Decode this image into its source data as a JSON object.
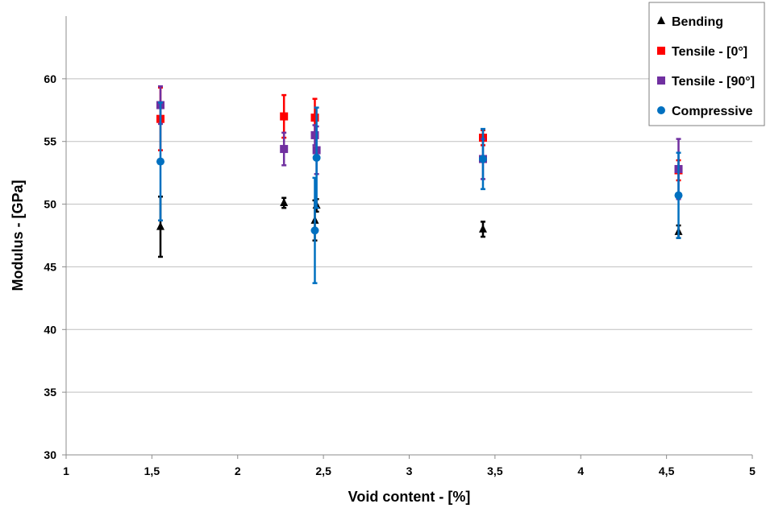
{
  "chart_data": {
    "type": "scatter",
    "title": "",
    "xlabel": "Void content - [%]",
    "ylabel": "Modulus - [GPa]",
    "xlim": [
      1,
      5
    ],
    "ylim": [
      30,
      65
    ],
    "x_ticks": [
      1,
      1.5,
      2,
      2.5,
      3,
      3.5,
      4,
      4.5,
      5
    ],
    "x_tick_labels": [
      "1",
      "1,5",
      "2",
      "2,5",
      "3",
      "3,5",
      "4",
      "4,5",
      "5"
    ],
    "y_ticks": [
      30,
      35,
      40,
      45,
      50,
      55,
      60
    ],
    "y_tick_labels": [
      "30",
      "35",
      "40",
      "45",
      "50",
      "55",
      "60"
    ],
    "grid": "horizontal",
    "legend_position": "top-right",
    "series": [
      {
        "name": "Bending",
        "marker": "triangle",
        "color": "#000000",
        "points": [
          {
            "x": 1.55,
            "y": 48.2,
            "err": 2.4
          },
          {
            "x": 2.27,
            "y": 50.1,
            "err": 0.4
          },
          {
            "x": 2.45,
            "y": 48.7,
            "err": 1.6
          },
          {
            "x": 2.46,
            "y": 49.9,
            "err": 0.5
          },
          {
            "x": 3.43,
            "y": 48.0,
            "err": 0.6
          },
          {
            "x": 4.57,
            "y": 47.8,
            "err": 0.5
          }
        ]
      },
      {
        "name": "Tensile - [0°]",
        "marker": "square",
        "color": "#ff0000",
        "points": [
          {
            "x": 1.55,
            "y": 56.8,
            "err": 2.5
          },
          {
            "x": 2.27,
            "y": 57.0,
            "err": 1.7
          },
          {
            "x": 2.45,
            "y": 56.9,
            "err": 1.5
          },
          {
            "x": 3.43,
            "y": 55.3,
            "err": 0.6
          },
          {
            "x": 4.57,
            "y": 52.7,
            "err": 0.8
          }
        ]
      },
      {
        "name": "Tensile - [90°]",
        "marker": "square",
        "color": "#7030a0",
        "points": [
          {
            "x": 1.55,
            "y": 57.9,
            "err": 1.5
          },
          {
            "x": 2.27,
            "y": 54.4,
            "err": 1.3
          },
          {
            "x": 2.45,
            "y": 55.5,
            "err": 0.8
          },
          {
            "x": 2.46,
            "y": 54.3,
            "err": 1.9
          },
          {
            "x": 3.43,
            "y": 53.6,
            "err": 1.6
          },
          {
            "x": 4.57,
            "y": 52.8,
            "err": 2.4
          }
        ]
      },
      {
        "name": "Compressive",
        "marker": "circle",
        "color": "#0070c0",
        "points": [
          {
            "x": 1.55,
            "y": 53.4,
            "err": 4.7
          },
          {
            "x": 2.45,
            "y": 47.9,
            "err": 4.2
          },
          {
            "x": 2.46,
            "y": 53.7,
            "err": 4.0
          },
          {
            "x": 3.43,
            "y": 53.6,
            "err": 2.4
          },
          {
            "x": 4.57,
            "y": 50.7,
            "err": 3.4
          }
        ]
      }
    ]
  }
}
